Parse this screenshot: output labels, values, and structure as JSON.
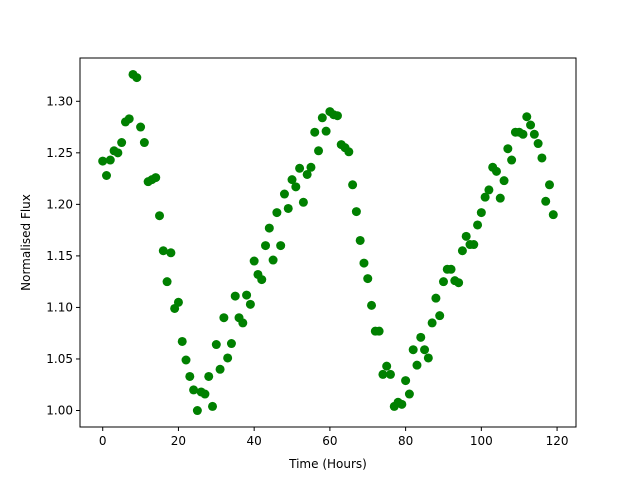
{
  "chart_data": {
    "type": "scatter",
    "title": "",
    "xlabel": "Time (Hours)",
    "ylabel": "Normalised Flux",
    "xlim": [
      -6,
      125
    ],
    "ylim": [
      0.984,
      1.342
    ],
    "xticks": [
      0,
      20,
      40,
      60,
      80,
      100,
      120
    ],
    "xtick_labels": [
      "0",
      "20",
      "40",
      "60",
      "80",
      "100",
      "120"
    ],
    "yticks": [
      1.0,
      1.05,
      1.1,
      1.15,
      1.2,
      1.25,
      1.3
    ],
    "ytick_labels": [
      "1.00",
      "1.05",
      "1.10",
      "1.15",
      "1.20",
      "1.25",
      "1.30"
    ],
    "grid": false,
    "marker_color": "#008000",
    "series": [
      {
        "x": [
          0,
          1,
          2,
          3,
          4,
          5,
          6,
          7,
          8,
          9,
          10,
          11,
          12,
          13,
          14,
          15,
          16,
          17,
          18,
          19,
          20,
          21,
          22,
          23,
          24,
          25,
          26,
          27,
          28,
          29,
          30,
          31,
          32,
          33,
          34,
          35,
          36,
          37,
          38,
          39,
          40,
          41,
          42,
          43,
          44,
          45,
          46,
          47,
          48,
          49,
          50,
          51,
          52,
          53,
          54,
          55,
          56,
          57,
          58,
          59,
          60,
          61,
          62,
          63,
          64,
          65,
          66,
          67,
          68,
          69,
          70,
          71,
          72,
          73,
          74,
          75,
          76,
          77,
          78,
          79,
          80,
          81,
          82,
          83,
          84,
          85,
          86,
          87,
          88,
          89,
          90,
          91,
          92,
          93,
          94,
          95,
          96,
          97,
          98,
          99,
          100,
          101,
          102,
          103,
          104,
          105,
          106,
          107,
          108,
          109,
          110,
          111,
          112,
          113,
          114,
          115,
          116,
          117,
          118,
          119
        ],
        "y": [
          1.242,
          1.228,
          1.243,
          1.252,
          1.25,
          1.26,
          1.28,
          1.283,
          1.326,
          1.323,
          1.275,
          1.26,
          1.222,
          1.224,
          1.226,
          1.189,
          1.155,
          1.125,
          1.153,
          1.099,
          1.105,
          1.067,
          1.049,
          1.033,
          1.02,
          1.0,
          1.018,
          1.016,
          1.033,
          1.004,
          1.064,
          1.04,
          1.09,
          1.051,
          1.065,
          1.111,
          1.09,
          1.085,
          1.112,
          1.103,
          1.145,
          1.132,
          1.127,
          1.16,
          1.177,
          1.146,
          1.192,
          1.16,
          1.21,
          1.196,
          1.224,
          1.217,
          1.235,
          1.202,
          1.229,
          1.236,
          1.27,
          1.252,
          1.284,
          1.271,
          1.29,
          1.287,
          1.286,
          1.258,
          1.255,
          1.251,
          1.219,
          1.193,
          1.165,
          1.143,
          1.128,
          1.102,
          1.077,
          1.077,
          1.035,
          1.043,
          1.035,
          1.004,
          1.008,
          1.006,
          1.029,
          1.016,
          1.059,
          1.044,
          1.071,
          1.059,
          1.051,
          1.085,
          1.109,
          1.092,
          1.125,
          1.137,
          1.137,
          1.126,
          1.124,
          1.155,
          1.169,
          1.161,
          1.161,
          1.18,
          1.192,
          1.207,
          1.214,
          1.236,
          1.232,
          1.206,
          1.223,
          1.254,
          1.243,
          1.27,
          1.27,
          1.268,
          1.285,
          1.277,
          1.268,
          1.259,
          1.245,
          1.203,
          1.219,
          1.19
        ]
      }
    ]
  }
}
